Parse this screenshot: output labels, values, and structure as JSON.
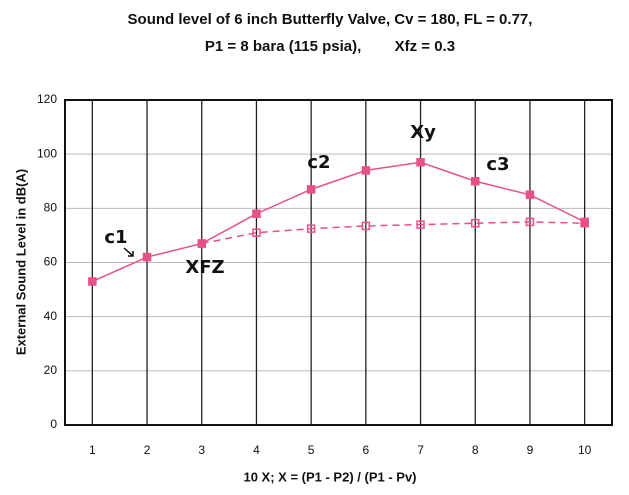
{
  "chart_data": {
    "type": "line",
    "title": "Sound level of 6 inch Butterfly Valve, Cv = 180, FL = 0.77,",
    "subtitle": "P1 = 8 bara (115 psia),        Xfz = 0.3",
    "x_label": "10 X; X = (P1 - P2) / (P1 - Pv)",
    "y_label": "External Sound Level in dB(A)",
    "categories": [
      "1",
      "2",
      "3",
      "4",
      "5",
      "6",
      "7",
      "8",
      "9",
      "10"
    ],
    "series": [
      {
        "color": "#e8508a",
        "dash": false,
        "values": [
          53,
          62,
          67,
          78,
          87,
          94,
          97,
          90,
          85,
          75
        ]
      },
      {
        "color": "#e8508a",
        "dash": true,
        "values": [
          null,
          null,
          67,
          71,
          72.5,
          73.5,
          74,
          74.5,
          75,
          74.5
        ]
      }
    ],
    "ylim": [
      0,
      120
    ],
    "yticks": [
      0,
      20,
      40,
      60,
      80,
      100,
      120
    ],
    "grid": true,
    "annotations": [
      "c1",
      "c2",
      "Xy",
      "c3",
      "XFZ"
    ]
  }
}
